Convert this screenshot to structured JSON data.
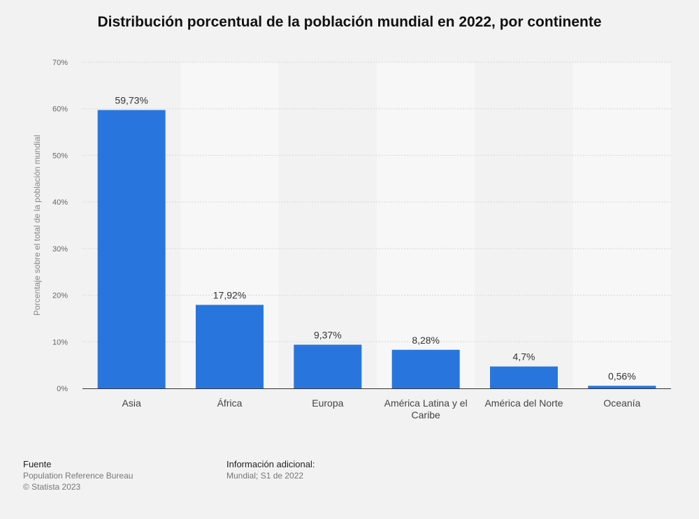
{
  "title": "Distribución porcentual de la población mundial en 2022, por continente",
  "chart_data": {
    "type": "bar",
    "categories": [
      "Asia",
      "África",
      "Europa",
      "América Latina y el Caribe",
      "América del Norte",
      "Oceanía"
    ],
    "values": [
      59.73,
      17.92,
      9.37,
      8.28,
      4.7,
      0.56
    ],
    "value_labels": [
      "59,73%",
      "17,92%",
      "9,37%",
      "8,28%",
      "4,7%",
      "0,56%"
    ],
    "ylabel": "Porcentaje sobre el total de la población mundial",
    "xlabel": "",
    "ylim": [
      0,
      70
    ],
    "yticks": [
      0,
      10,
      20,
      30,
      40,
      50,
      60,
      70
    ],
    "ytick_labels": [
      "0%",
      "10%",
      "20%",
      "30%",
      "40%",
      "50%",
      "60%",
      "70%"
    ],
    "grid": true,
    "bar_color": "#2876dd"
  },
  "footer": {
    "source_heading": "Fuente",
    "source_lines": [
      "Population Reference Bureau",
      "© Statista 2023"
    ],
    "info_heading": "Información adicional:",
    "info_lines": [
      "Mundial; S1 de 2022"
    ]
  }
}
